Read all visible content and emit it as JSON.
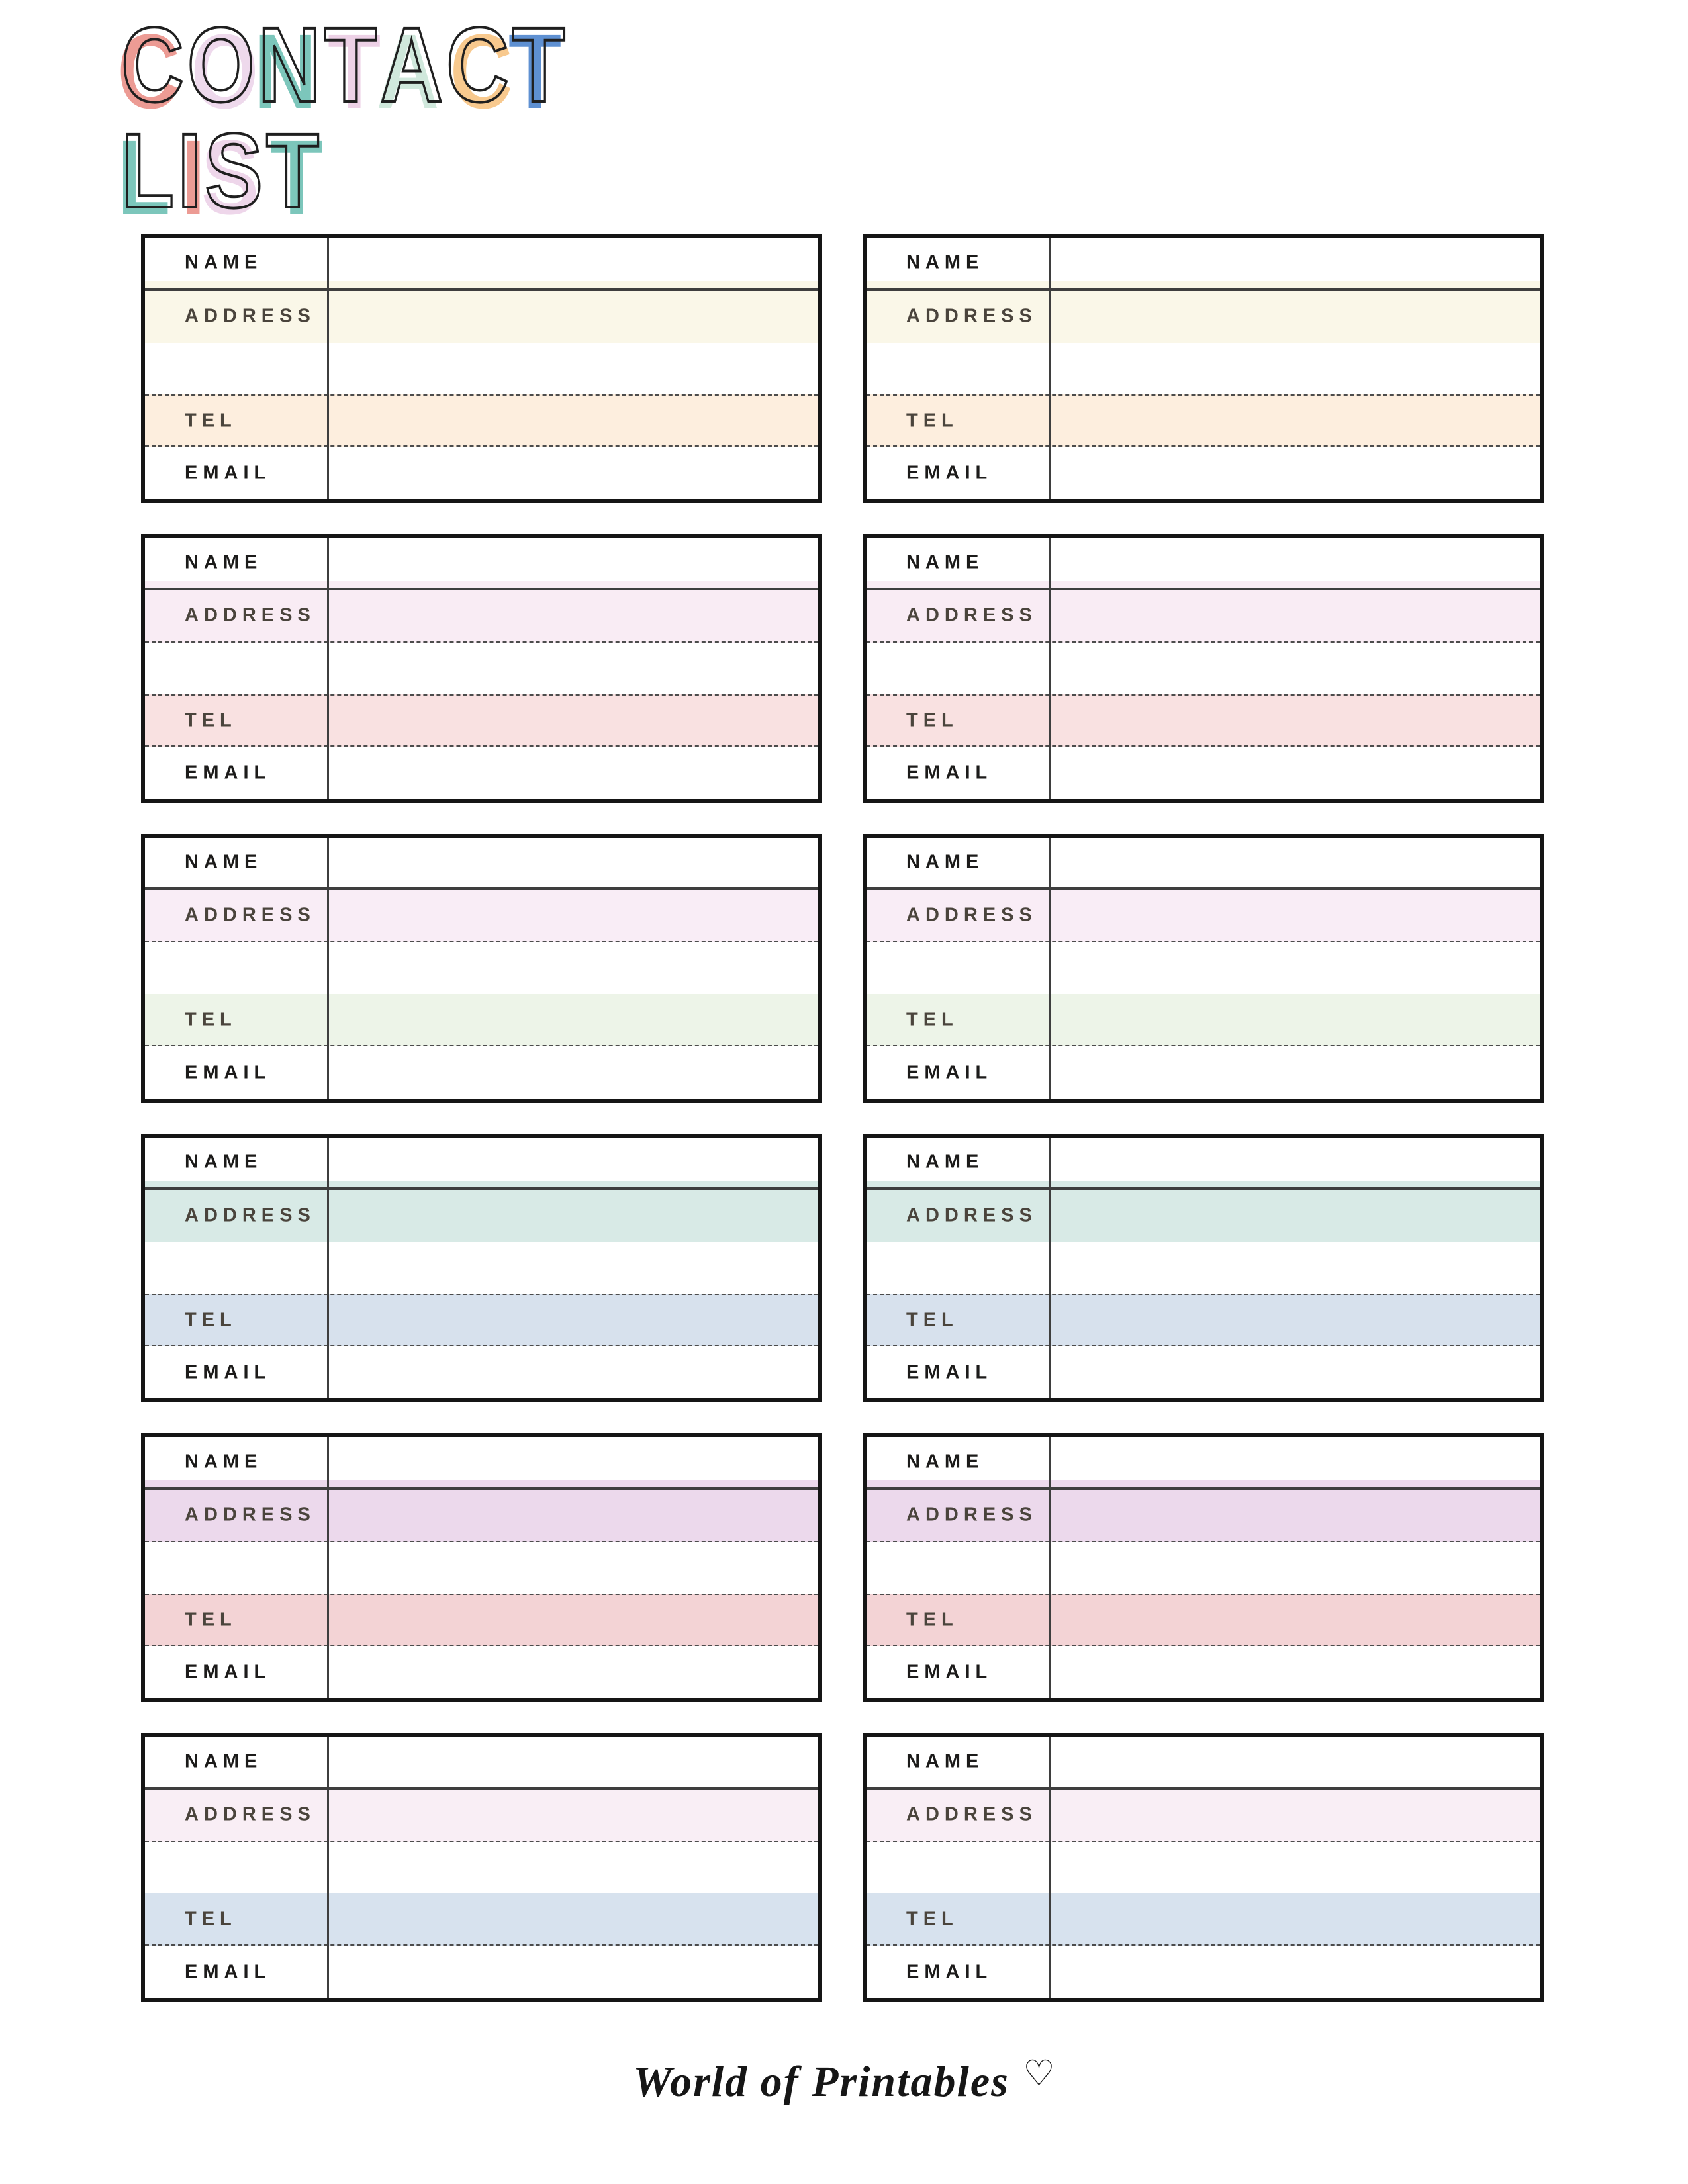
{
  "title": {
    "text": "CONTACT LIST",
    "line1_letters": [
      {
        "ch": "C",
        "color": "#ec9b94"
      },
      {
        "ch": "O",
        "color": "#eed9ec"
      },
      {
        "ch": "N",
        "color": "#7cc6bb"
      },
      {
        "ch": "T",
        "color": "#edd1e6"
      },
      {
        "ch": "A",
        "color": "#d0e8dc"
      },
      {
        "ch": "C",
        "color": "#f8c98e"
      },
      {
        "ch": "T",
        "color": "#5e90d2"
      }
    ],
    "line2_letters": [
      {
        "ch": "L",
        "color": "#7cc6bb"
      },
      {
        "ch": "I",
        "color": "#ec9b94"
      },
      {
        "ch": "S",
        "color": "#eed6ea"
      },
      {
        "ch": "T",
        "color": "#7cc6bb"
      }
    ]
  },
  "card_labels": {
    "name": "NAME",
    "address": "ADDRESS",
    "tel": "TEL",
    "email": "EMAIL"
  },
  "colors": {
    "card_border": "#151515",
    "divider": "#3e3e3e",
    "dash": "#4c4c4c",
    "title_outline": "#1f1f1f"
  },
  "cards": [
    {
      "address_bg": "#faf7e8",
      "tel_bg": "#fdeede",
      "address_dotted_bottom": false,
      "tel_dotted_top": true,
      "name_strip": true,
      "fields": {
        "name": "",
        "address": "",
        "tel": "",
        "email": ""
      }
    },
    {
      "address_bg": "#faf7e8",
      "tel_bg": "#fdeede",
      "address_dotted_bottom": false,
      "tel_dotted_top": true,
      "name_strip": true,
      "fields": {
        "name": "",
        "address": "",
        "tel": "",
        "email": ""
      }
    },
    {
      "address_bg": "#f9ecf4",
      "tel_bg": "#f9e1e1",
      "address_dotted_bottom": true,
      "tel_dotted_top": true,
      "name_strip": true,
      "fields": {
        "name": "",
        "address": "",
        "tel": "",
        "email": ""
      }
    },
    {
      "address_bg": "#f9ecf4",
      "tel_bg": "#f9e1e1",
      "address_dotted_bottom": true,
      "tel_dotted_top": true,
      "name_strip": true,
      "fields": {
        "name": "",
        "address": "",
        "tel": "",
        "email": ""
      }
    },
    {
      "address_bg": "#f9edf6",
      "tel_bg": "#edf4e8",
      "address_dotted_bottom": true,
      "tel_dotted_top": false,
      "name_strip": false,
      "fields": {
        "name": "",
        "address": "",
        "tel": "",
        "email": ""
      }
    },
    {
      "address_bg": "#f9edf6",
      "tel_bg": "#edf4e8",
      "address_dotted_bottom": true,
      "tel_dotted_top": false,
      "name_strip": false,
      "fields": {
        "name": "",
        "address": "",
        "tel": "",
        "email": ""
      }
    },
    {
      "address_bg": "#d8eae6",
      "tel_bg": "#d7e1ed",
      "address_dotted_bottom": false,
      "tel_dotted_top": true,
      "name_strip": true,
      "fields": {
        "name": "",
        "address": "",
        "tel": "",
        "email": ""
      }
    },
    {
      "address_bg": "#d8eae6",
      "tel_bg": "#d7e1ed",
      "address_dotted_bottom": false,
      "tel_dotted_top": true,
      "name_strip": true,
      "fields": {
        "name": "",
        "address": "",
        "tel": "",
        "email": ""
      }
    },
    {
      "address_bg": "#ecd9ec",
      "tel_bg": "#f3d3d5",
      "address_dotted_bottom": true,
      "tel_dotted_top": true,
      "name_strip": true,
      "fields": {
        "name": "",
        "address": "",
        "tel": "",
        "email": ""
      }
    },
    {
      "address_bg": "#ecd9ec",
      "tel_bg": "#f3d3d5",
      "address_dotted_bottom": true,
      "tel_dotted_top": true,
      "name_strip": true,
      "fields": {
        "name": "",
        "address": "",
        "tel": "",
        "email": ""
      }
    },
    {
      "address_bg": "#f9eef5",
      "tel_bg": "#d7e2ee",
      "address_dotted_bottom": true,
      "tel_dotted_top": false,
      "name_strip": false,
      "fields": {
        "name": "",
        "address": "",
        "tel": "",
        "email": ""
      }
    },
    {
      "address_bg": "#f9eef5",
      "tel_bg": "#d7e2ee",
      "address_dotted_bottom": true,
      "tel_dotted_top": false,
      "name_strip": false,
      "fields": {
        "name": "",
        "address": "",
        "tel": "",
        "email": ""
      }
    }
  ],
  "footer": {
    "brand": "World of Printables",
    "heart": "♡"
  }
}
